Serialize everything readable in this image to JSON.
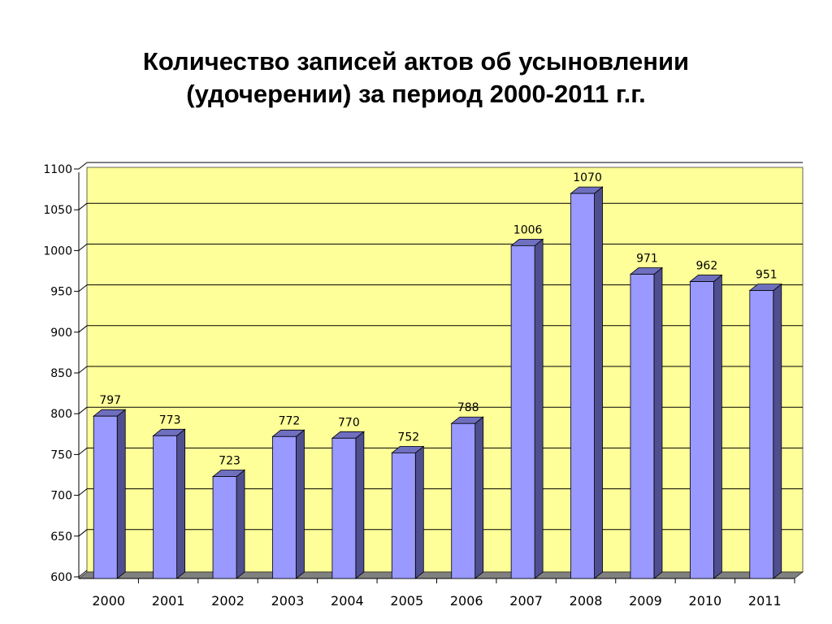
{
  "chart_data": {
    "type": "bar",
    "title_lines": [
      "Количество записей актов об усыновлении",
      "(удочерении) за период 2000-2011 г.г."
    ],
    "categories": [
      "2000",
      "2001",
      "2002",
      "2003",
      "2004",
      "2005",
      "2006",
      "2007",
      "2008",
      "2009",
      "2010",
      "2011"
    ],
    "values": [
      797,
      773,
      723,
      772,
      770,
      752,
      788,
      1006,
      1070,
      971,
      962,
      951
    ],
    "ylim": [
      600,
      1100
    ],
    "ytick_step": 50,
    "grid": true,
    "legend": "none",
    "colors": {
      "plot_background": "#ffff99",
      "bar_front": "#9999ff",
      "bar_side": "#4f4f8f",
      "bar_top": "#6f6fc0",
      "floor": "#808080",
      "gridline": "#000000"
    }
  }
}
